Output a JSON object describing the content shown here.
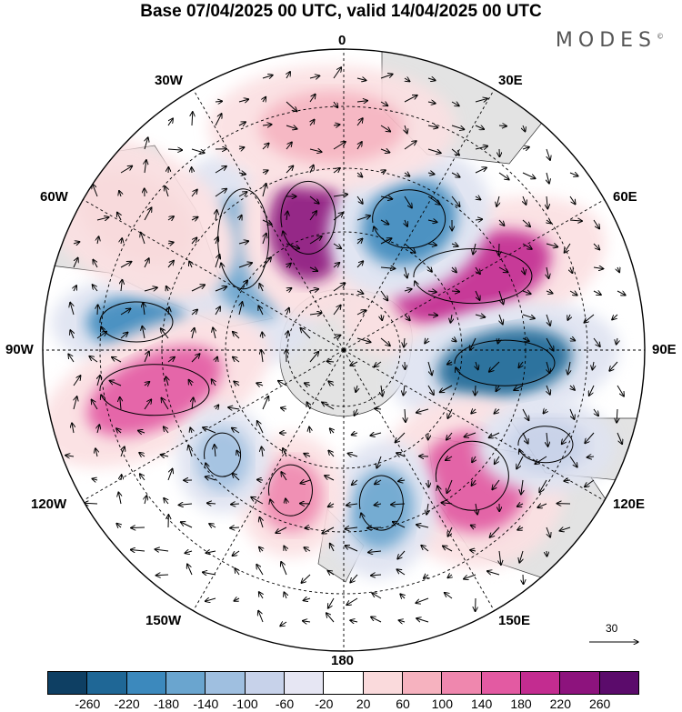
{
  "title": "Base 07/04/2025 00 UTC, valid 14/04/2025 00 UTC",
  "brand": "MODES",
  "brand_mark": "©",
  "longitude_labels": {
    "top": "0",
    "bottom": "180",
    "left": "90W",
    "right": "90E",
    "nw1": "30W",
    "nw2": "60W",
    "ne1": "30E",
    "ne2": "60E",
    "sw1": "120W",
    "sw2": "150W",
    "se1": "120E",
    "se2": "150E"
  },
  "reference_vector_label": "30",
  "colorbar": {
    "colors": [
      "#0e3f63",
      "#1f6796",
      "#3c89bd",
      "#6aa5cf",
      "#9fbfe0",
      "#c7d2ea",
      "#e6e6f3",
      "#ffffff",
      "#fadadc",
      "#f6b2bf",
      "#ef87ae",
      "#e35aa2",
      "#c32c90",
      "#8d137d",
      "#5b0b6b"
    ],
    "ticks": [
      "-260",
      "-220",
      "-180",
      "-140",
      "-100",
      "-60",
      "-20",
      "20",
      "60",
      "100",
      "140",
      "180",
      "220",
      "260"
    ]
  },
  "anomaly_centers": [
    {
      "id": "blue-1",
      "sign": "negative",
      "level": -180,
      "color": "#3c89bd"
    },
    {
      "id": "blue-2",
      "sign": "negative",
      "level": -140,
      "color": "#6aa5cf"
    },
    {
      "id": "pink-1",
      "sign": "positive",
      "level": 220,
      "color": "#8d137d"
    },
    {
      "id": "pink-2",
      "sign": "positive",
      "level": 180,
      "color": "#c32c90"
    },
    {
      "id": "blue-3",
      "sign": "negative",
      "level": -220,
      "color": "#1f6796"
    },
    {
      "id": "blue-4",
      "sign": "negative",
      "level": -180,
      "color": "#3c89bd"
    },
    {
      "id": "pink-3",
      "sign": "positive",
      "level": 140,
      "color": "#e35aa2"
    },
    {
      "id": "blue-5",
      "sign": "negative",
      "level": -140,
      "color": "#6aa5cf"
    },
    {
      "id": "pink-4",
      "sign": "positive",
      "level": 140,
      "color": "#ef87ae"
    },
    {
      "id": "pink-5",
      "sign": "positive",
      "level": 140,
      "color": "#e35aa2"
    },
    {
      "id": "blue-6",
      "sign": "negative",
      "level": -100,
      "color": "#9fbfe0"
    },
    {
      "id": "pink-6",
      "sign": "positive",
      "level": 100,
      "color": "#f6b2bf"
    },
    {
      "id": "blue-7",
      "sign": "negative",
      "level": -60,
      "color": "#c7d2ea"
    },
    {
      "id": "pink-7",
      "sign": "positive",
      "level": 60,
      "color": "#fadadc"
    }
  ]
}
